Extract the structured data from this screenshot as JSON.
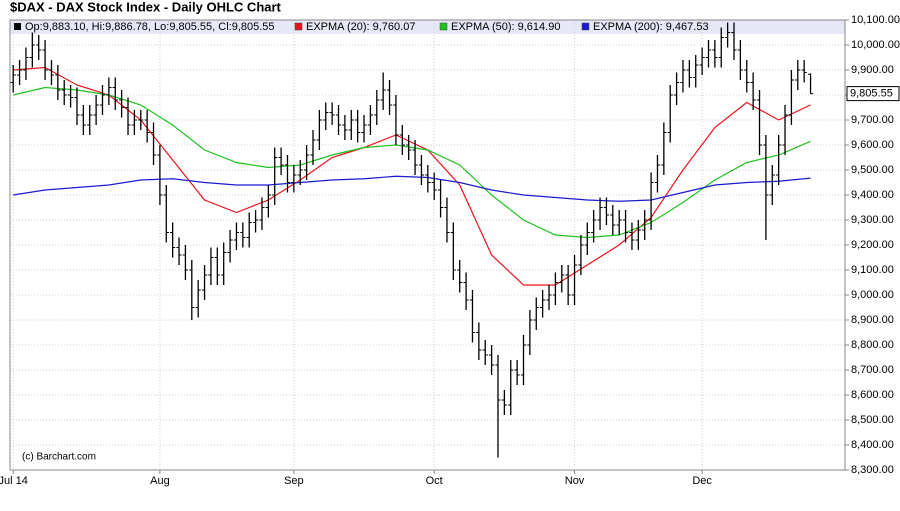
{
  "chart_data": {
    "type": "ohlc",
    "title": "$DAX - DAX Stock Index - Daily OHLC Chart",
    "ohlc_legend": "Op:9,883.10, Hi:9,886.78, Lo:9,805.55, Cl:9,805.55",
    "last_price_label": "9,805.55",
    "watermark": "(c) Barchart.com",
    "bar_color": "#000000",
    "grid": true,
    "open": [
      9850,
      9880,
      9900,
      9950,
      10000,
      9980,
      9900,
      9880,
      9820,
      9800,
      9790,
      9720,
      9680,
      9720,
      9760,
      9800,
      9830,
      9780,
      9750,
      9680,
      9700,
      9700,
      9650,
      9560,
      9400,
      9250,
      9190,
      9160,
      9100,
      8950,
      9020,
      9080,
      9150,
      9080,
      9170,
      9220,
      9250,
      9230,
      9290,
      9300,
      9350,
      9400,
      9550,
      9520,
      9450,
      9480,
      9500,
      9560,
      9620,
      9700,
      9730,
      9720,
      9680,
      9660,
      9700,
      9650,
      9680,
      9720,
      9780,
      9820,
      9760,
      9640,
      9600,
      9580,
      9520,
      9480,
      9450,
      9420,
      9350,
      9250,
      9100,
      9050,
      8980,
      8850,
      8780,
      8760,
      8720,
      8580,
      8560,
      8700,
      8680,
      8800,
      8900,
      8950,
      8980,
      9000,
      9050,
      9080,
      9000,
      9120,
      9200,
      9250,
      9300,
      9350,
      9320,
      9280,
      9300,
      9250,
      9220,
      9260,
      9300,
      9450,
      9520,
      9650,
      9800,
      9850,
      9900,
      9870,
      9920,
      9950,
      9980,
      9950,
      10030,
      10050,
      9980,
      9900,
      9850,
      9780,
      9600,
      9400,
      9480,
      9600,
      9720,
      9860,
      9900,
      9883.1
    ],
    "high": [
      9920,
      9940,
      9990,
      10050,
      10040,
      10020,
      9940,
      9920,
      9860,
      9840,
      9830,
      9760,
      9760,
      9800,
      9840,
      9870,
      9870,
      9820,
      9790,
      9740,
      9740,
      9740,
      9690,
      9600,
      9440,
      9290,
      9230,
      9200,
      9140,
      9060,
      9120,
      9190,
      9190,
      9210,
      9260,
      9290,
      9290,
      9330,
      9340,
      9390,
      9440,
      9590,
      9590,
      9560,
      9520,
      9540,
      9600,
      9660,
      9740,
      9770,
      9770,
      9760,
      9720,
      9740,
      9740,
      9720,
      9760,
      9820,
      9890,
      9860,
      9800,
      9680,
      9640,
      9620,
      9560,
      9520,
      9490,
      9460,
      9390,
      9290,
      9140,
      9090,
      9020,
      8890,
      8820,
      8800,
      8760,
      8620,
      8740,
      8740,
      8840,
      8940,
      8990,
      9020,
      9040,
      9090,
      9120,
      9120,
      9160,
      9240,
      9290,
      9340,
      9390,
      9390,
      9360,
      9340,
      9340,
      9290,
      9300,
      9340,
      9490,
      9560,
      9690,
      9840,
      9890,
      9940,
      9940,
      9960,
      9990,
      10020,
      10020,
      10070,
      10090,
      10090,
      10020,
      9940,
      9890,
      9820,
      9640,
      9520,
      9640,
      9760,
      9900,
      9940,
      9940,
      9886.78
    ],
    "low": [
      9810,
      9840,
      9860,
      9910,
      9940,
      9860,
      9840,
      9780,
      9760,
      9750,
      9680,
      9640,
      9640,
      9680,
      9720,
      9760,
      9740,
      9710,
      9640,
      9640,
      9660,
      9610,
      9520,
      9360,
      9210,
      9150,
      9120,
      9060,
      8900,
      8910,
      8980,
      9040,
      9040,
      9040,
      9130,
      9180,
      9190,
      9190,
      9250,
      9260,
      9310,
      9360,
      9480,
      9410,
      9410,
      9440,
      9460,
      9520,
      9580,
      9660,
      9680,
      9640,
      9620,
      9620,
      9610,
      9610,
      9640,
      9680,
      9740,
      9720,
      9600,
      9560,
      9540,
      9480,
      9440,
      9410,
      9380,
      9310,
      9210,
      9060,
      9010,
      8940,
      8810,
      8740,
      8720,
      8680,
      8350,
      8520,
      8520,
      8640,
      8640,
      8760,
      8860,
      8910,
      8940,
      8960,
      9010,
      8960,
      8960,
      9080,
      9160,
      9210,
      9260,
      9280,
      9240,
      9240,
      9210,
      9180,
      9180,
      9220,
      9260,
      9410,
      9480,
      9610,
      9760,
      9810,
      9830,
      9830,
      9880,
      9910,
      9910,
      9910,
      9990,
      9940,
      9860,
      9810,
      9740,
      9560,
      9220,
      9360,
      9440,
      9560,
      9680,
      9820,
      9850,
      9805.55
    ],
    "close": [
      9880,
      9900,
      9950,
      10000,
      9980,
      9900,
      9880,
      9820,
      9800,
      9790,
      9720,
      9680,
      9720,
      9760,
      9800,
      9830,
      9780,
      9750,
      9680,
      9700,
      9700,
      9650,
      9560,
      9400,
      9250,
      9190,
      9160,
      9100,
      8950,
      9020,
      9080,
      9150,
      9080,
      9170,
      9220,
      9250,
      9230,
      9290,
      9300,
      9350,
      9400,
      9550,
      9520,
      9450,
      9480,
      9500,
      9560,
      9620,
      9700,
      9730,
      9720,
      9680,
      9660,
      9700,
      9650,
      9680,
      9720,
      9780,
      9820,
      9760,
      9640,
      9600,
      9580,
      9520,
      9480,
      9450,
      9420,
      9350,
      9250,
      9100,
      9050,
      8980,
      8850,
      8780,
      8760,
      8720,
      8580,
      8560,
      8700,
      8680,
      8800,
      8900,
      8950,
      8980,
      9000,
      9050,
      9080,
      9000,
      9120,
      9200,
      9250,
      9300,
      9350,
      9320,
      9280,
      9300,
      9250,
      9220,
      9260,
      9300,
      9450,
      9520,
      9650,
      9800,
      9850,
      9900,
      9870,
      9920,
      9950,
      9980,
      9950,
      10030,
      10050,
      9980,
      9900,
      9850,
      9780,
      9600,
      9400,
      9480,
      9600,
      9720,
      9860,
      9900,
      9890,
      9805.55
    ],
    "series": [
      {
        "name": "EXPMA (20): 9,760.07",
        "color": "#e8141b",
        "x": [
          0,
          5,
          10,
          15,
          20,
          25,
          30,
          35,
          40,
          45,
          50,
          55,
          60,
          65,
          70,
          75,
          80,
          85,
          90,
          95,
          100,
          105,
          110,
          115,
          120,
          125
        ],
        "values": [
          9900,
          9910,
          9840,
          9800,
          9700,
          9540,
          9380,
          9330,
          9380,
          9460,
          9550,
          9590,
          9640,
          9580,
          9440,
          9160,
          9040,
          9040,
          9120,
          9200,
          9310,
          9500,
          9670,
          9770,
          9700,
          9760.07
        ]
      },
      {
        "name": "EXPMA (50): 9,614.90",
        "color": "#1ec21e",
        "x": [
          0,
          5,
          10,
          15,
          20,
          25,
          30,
          35,
          40,
          45,
          50,
          55,
          60,
          65,
          70,
          75,
          80,
          85,
          90,
          95,
          100,
          105,
          110,
          115,
          120,
          125
        ],
        "values": [
          9800,
          9830,
          9820,
          9800,
          9760,
          9680,
          9580,
          9530,
          9510,
          9520,
          9560,
          9590,
          9600,
          9580,
          9520,
          9400,
          9300,
          9240,
          9230,
          9240,
          9290,
          9370,
          9460,
          9530,
          9560,
          9614.9
        ]
      },
      {
        "name": "EXPMA (200): 9,467.53",
        "color": "#1a1ad0",
        "x": [
          0,
          5,
          10,
          15,
          20,
          25,
          30,
          35,
          40,
          45,
          50,
          55,
          60,
          65,
          70,
          75,
          80,
          85,
          90,
          95,
          100,
          105,
          110,
          115,
          120,
          125
        ],
        "values": [
          9400,
          9420,
          9430,
          9440,
          9460,
          9465,
          9450,
          9440,
          9440,
          9450,
          9460,
          9465,
          9475,
          9470,
          9450,
          9420,
          9400,
          9390,
          9380,
          9375,
          9380,
          9410,
          9440,
          9450,
          9455,
          9467.53
        ]
      }
    ],
    "xlim": [
      -0.5,
      130.4
    ],
    "xticks": [
      {
        "value": 0,
        "label": "Jul 14"
      },
      {
        "value": 23,
        "label": "Aug"
      },
      {
        "value": 44,
        "label": "Sep"
      },
      {
        "value": 66,
        "label": "Oct"
      },
      {
        "value": 88,
        "label": "Nov"
      },
      {
        "value": 108,
        "label": "Dec"
      }
    ],
    "ylim": [
      8300,
      10100
    ],
    "yticks": [
      {
        "value": 8300,
        "label": "8,300.00"
      },
      {
        "value": 8400,
        "label": "8,400.00"
      },
      {
        "value": 8500,
        "label": "8,500.00"
      },
      {
        "value": 8600,
        "label": "8,600.00"
      },
      {
        "value": 8700,
        "label": "8,700.00"
      },
      {
        "value": 8800,
        "label": "8,800.00"
      },
      {
        "value": 8900,
        "label": "8,900.00"
      },
      {
        "value": 9000,
        "label": "9,000.00"
      },
      {
        "value": 9100,
        "label": "9,100.00"
      },
      {
        "value": 9200,
        "label": "9,200.00"
      },
      {
        "value": 9300,
        "label": "9,300.00"
      },
      {
        "value": 9400,
        "label": "9,400.00"
      },
      {
        "value": 9500,
        "label": "9,500.00"
      },
      {
        "value": 9600,
        "label": "9,600.00"
      },
      {
        "value": 9700,
        "label": "9,700.00"
      },
      {
        "value": 9800,
        "label": "9,800.00"
      },
      {
        "value": 9900,
        "label": "9,900.00"
      },
      {
        "value": 10000,
        "label": "10,000.00"
      },
      {
        "value": 10100,
        "label": "10,100.00"
      }
    ]
  }
}
